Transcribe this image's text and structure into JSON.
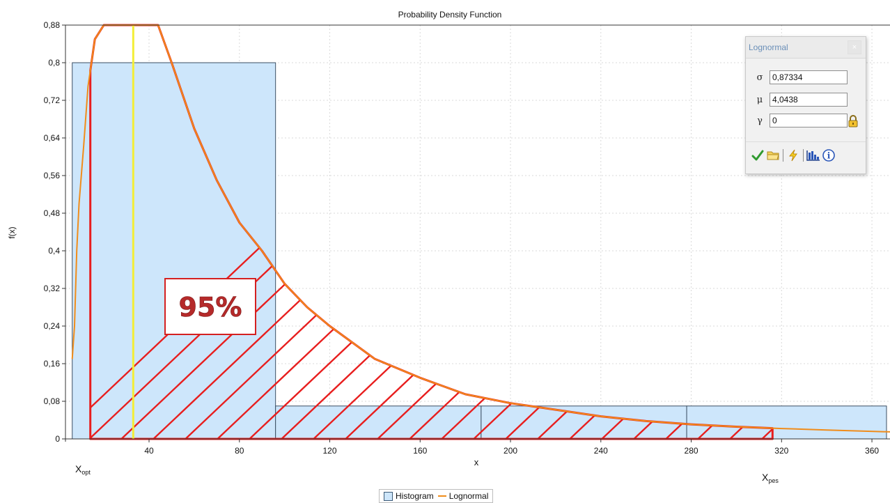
{
  "chart_data": {
    "type": "bar",
    "title": "Probability Density Function",
    "xlabel": "x",
    "ylabel": "f(x)",
    "xlim": [
      3,
      368
    ],
    "ylim": [
      0,
      0.88
    ],
    "xticks": [
      40,
      80,
      120,
      160,
      200,
      240,
      280,
      320,
      360
    ],
    "yticks": [
      0,
      0.08,
      0.16,
      0.24,
      0.32,
      0.4,
      0.48,
      0.56,
      0.64,
      0.72,
      0.8,
      0.88
    ],
    "ytick_labels": [
      "0",
      "0,08",
      "0,16",
      "0,24",
      "0,32",
      "0,4",
      "0,48",
      "0,56",
      "0,64",
      "0,72",
      "0,8",
      "0,88"
    ],
    "grid": true,
    "legend_position": "bottom-center",
    "series": [
      {
        "name": "Histogram",
        "kind": "bar",
        "color": "#cde6fb",
        "bins": [
          {
            "x0": 6,
            "x1": 96,
            "value": 0.8
          },
          {
            "x0": 96,
            "x1": 187,
            "value": 0.07
          },
          {
            "x0": 187,
            "x1": 278,
            "value": 0.07
          },
          {
            "x0": 278,
            "x1": 368,
            "value": 0.07
          }
        ]
      },
      {
        "name": "Lognormal",
        "kind": "line",
        "color": "#f08c1a",
        "points": [
          {
            "x": 6,
            "y": 0.17
          },
          {
            "x": 7,
            "y": 0.24
          },
          {
            "x": 8,
            "y": 0.4
          },
          {
            "x": 9,
            "y": 0.5
          },
          {
            "x": 11,
            "y": 0.62
          },
          {
            "x": 13,
            "y": 0.75
          },
          {
            "x": 16,
            "y": 0.85
          },
          {
            "x": 20,
            "y": 0.88
          },
          {
            "x": 44,
            "y": 0.88
          },
          {
            "x": 50,
            "y": 0.8
          },
          {
            "x": 60,
            "y": 0.66
          },
          {
            "x": 70,
            "y": 0.55
          },
          {
            "x": 80,
            "y": 0.46
          },
          {
            "x": 90,
            "y": 0.4
          },
          {
            "x": 100,
            "y": 0.33
          },
          {
            "x": 110,
            "y": 0.28
          },
          {
            "x": 120,
            "y": 0.24
          },
          {
            "x": 140,
            "y": 0.17
          },
          {
            "x": 160,
            "y": 0.13
          },
          {
            "x": 180,
            "y": 0.095
          },
          {
            "x": 200,
            "y": 0.076
          },
          {
            "x": 220,
            "y": 0.062
          },
          {
            "x": 240,
            "y": 0.048
          },
          {
            "x": 260,
            "y": 0.038
          },
          {
            "x": 280,
            "y": 0.031
          },
          {
            "x": 300,
            "y": 0.026
          },
          {
            "x": 320,
            "y": 0.022
          },
          {
            "x": 340,
            "y": 0.019
          },
          {
            "x": 368,
            "y": 0.015
          }
        ]
      }
    ],
    "annotations": {
      "shaded_region": {
        "x_from": 14,
        "x_to": 316,
        "color": "#e81e1e"
      },
      "mode_line": {
        "x": 33,
        "color": "#f3ee36"
      },
      "percent_label": "95%",
      "x_opt": {
        "base": "X",
        "sub": "opt",
        "x": 14
      },
      "x_pes": {
        "base": "X",
        "sub": "pes",
        "x": 316
      }
    }
  },
  "parameters_panel": {
    "title": "Lognormal",
    "close_label": "×",
    "sigma": {
      "symbol": "σ",
      "value": "0,87334"
    },
    "mu": {
      "symbol": "μ",
      "value": "4,0438"
    },
    "gamma": {
      "symbol": "γ",
      "value": "0"
    },
    "toolbar_icons": [
      "check-icon",
      "folder-icon",
      "lightning-icon",
      "histogram-icon",
      "info-icon"
    ],
    "info_label": "i"
  },
  "legend": {
    "histogram_label": "Histogram",
    "lognormal_label": "Lognormal"
  }
}
